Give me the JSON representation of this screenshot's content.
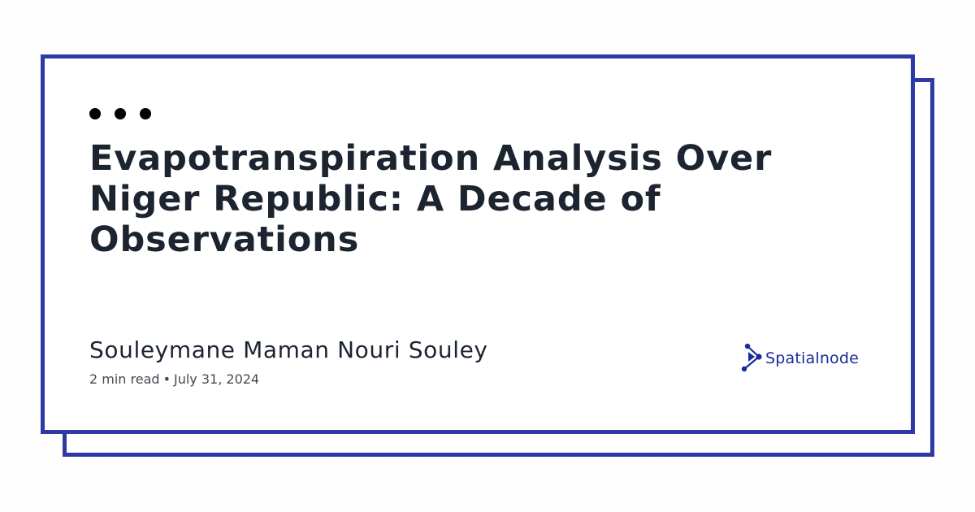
{
  "post": {
    "title": "Evapotranspiration Analysis Over Niger Republic: A Decade of Observations",
    "author": "Souleymane Maman Nouri Souley",
    "read_time": "2 min read",
    "separator": "•",
    "date": "July 31, 2024"
  },
  "brand": {
    "name": "Spatialnode",
    "logo_icon": "node-network-icon",
    "color": "#1a2a9a"
  },
  "colors": {
    "frame": "#2d3aa5",
    "card_background": "#ffffff",
    "title_text": "#1c2430"
  },
  "decoration": {
    "menu_dots_icon": "three-dots-icon"
  }
}
